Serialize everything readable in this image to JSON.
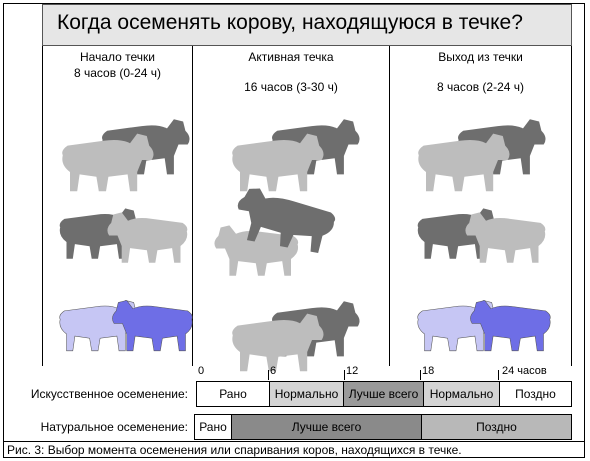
{
  "title": "Когда осеменять корову, находящуюся в течке?",
  "columns": [
    {
      "title": "Начало течки",
      "duration": "8 часов (0-24 ч)"
    },
    {
      "title": "Активная течка",
      "duration": "16 часов (3-30 ч)"
    },
    {
      "title": "Выход из течки",
      "duration": "8 часов (2-24 ч)"
    }
  ],
  "scale": {
    "t0": "0",
    "t6": "6",
    "t12": "12",
    "t18": "18",
    "t24": "24 часов"
  },
  "rows": [
    {
      "label": "Искусственное осеменение:",
      "segments": [
        {
          "text": "Рано",
          "color": "#ffffff"
        },
        {
          "text": "Нормально",
          "color": "#d4d4d4"
        },
        {
          "text": "Лучше всего",
          "color": "#9a9a9a"
        },
        {
          "text": "Нормально",
          "color": "#d4d4d4"
        },
        {
          "text": "Поздно",
          "color": "#ffffff"
        }
      ]
    },
    {
      "label": "Натуральное осеменение:",
      "segments": [
        {
          "text": "Рано",
          "color": "#ffffff"
        },
        {
          "text": "Лучше всего",
          "color": "#8a8a8a"
        },
        {
          "text": "Поздно",
          "color": "#b8b8b8"
        }
      ]
    }
  ],
  "caption": "Рис. 3:  Выбор момента осеменения или спаривания коров, находящихся в течке.",
  "colors": {
    "light_cow": "#bdbdbd",
    "dark_cow": "#6e6e6e",
    "lavender_cow": "#c6c6f4",
    "blue_cow": "#6e6ee6"
  }
}
